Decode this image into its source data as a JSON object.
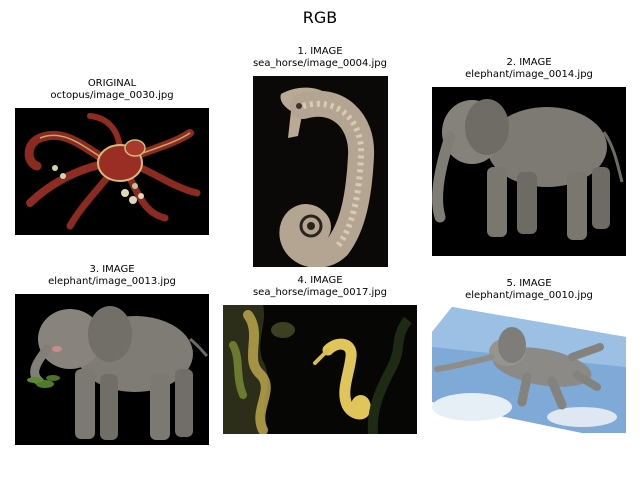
{
  "figure": {
    "title": "RGB"
  },
  "panels": [
    {
      "label": "ORIGINAL",
      "path": "octopus/image_0030.jpg",
      "subject": "octopus",
      "background": "#000000"
    },
    {
      "label": "1. IMAGE",
      "path": "sea_horse/image_0004.jpg",
      "subject": "sea-horse",
      "background": "#0b0907"
    },
    {
      "label": "2. IMAGE",
      "path": "elephant/image_0014.jpg",
      "subject": "elephant",
      "background": "#000000"
    },
    {
      "label": "3. IMAGE",
      "path": "elephant/image_0013.jpg",
      "subject": "elephant",
      "background": "#000000"
    },
    {
      "label": "4. IMAGE",
      "path": "sea_horse/image_0017.jpg",
      "subject": "sea-horse",
      "background": "#060604"
    },
    {
      "label": "5. IMAGE",
      "path": "elephant/image_0010.jpg",
      "subject": "elephant",
      "background": "#ffffff"
    }
  ]
}
